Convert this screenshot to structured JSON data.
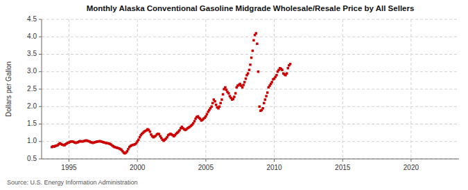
{
  "chart_data": {
    "type": "scatter",
    "title": "Monthly Alaska Conventional Gasoline Midgrade Wholesale/Resale Price by All Sellers",
    "ylabel": "Dollars per Gallon",
    "source": "Source: U.S. Energy Information Administration",
    "color": "#cc0000",
    "marker": "square",
    "grid": true,
    "xlim": [
      1993.0,
      2023.5
    ],
    "ylim": [
      0.5,
      4.5
    ],
    "xticks": [
      1995,
      2000,
      2005,
      2010,
      2015,
      2020
    ],
    "yticks": [
      0.5,
      {
        "value": 1.0,
        "label": "1.0"
      },
      1.5,
      {
        "value": 2.0,
        "label": "2.0"
      },
      2.5,
      {
        "value": 3.0,
        "label": "3.0"
      },
      3.5,
      {
        "value": 4.0,
        "label": "4.0"
      },
      4.5
    ],
    "x": [
      1993.75,
      1993.83,
      1993.92,
      1994.0,
      1994.08,
      1994.17,
      1994.25,
      1994.33,
      1994.42,
      1994.5,
      1994.58,
      1994.67,
      1994.75,
      1994.83,
      1994.92,
      1995.0,
      1995.08,
      1995.17,
      1995.25,
      1995.33,
      1995.42,
      1995.5,
      1995.58,
      1995.67,
      1995.75,
      1995.83,
      1995.92,
      1996.0,
      1996.08,
      1996.17,
      1996.25,
      1996.33,
      1996.42,
      1996.5,
      1996.58,
      1996.67,
      1996.75,
      1996.83,
      1996.92,
      1997.0,
      1997.08,
      1997.17,
      1997.25,
      1997.33,
      1997.42,
      1997.5,
      1997.58,
      1997.67,
      1997.75,
      1997.83,
      1997.92,
      1998.0,
      1998.08,
      1998.17,
      1998.25,
      1998.33,
      1998.42,
      1998.5,
      1998.58,
      1998.67,
      1998.75,
      1998.83,
      1998.92,
      1999.0,
      1999.08,
      1999.17,
      1999.25,
      1999.33,
      1999.42,
      1999.5,
      1999.58,
      1999.67,
      1999.75,
      1999.83,
      1999.92,
      2000.0,
      2000.08,
      2000.17,
      2000.25,
      2000.33,
      2000.42,
      2000.5,
      2000.58,
      2000.67,
      2000.75,
      2000.83,
      2000.92,
      2001.0,
      2001.08,
      2001.17,
      2001.25,
      2001.33,
      2001.42,
      2001.5,
      2001.58,
      2001.67,
      2001.75,
      2001.83,
      2001.92,
      2002.0,
      2002.08,
      2002.17,
      2002.25,
      2002.33,
      2002.42,
      2002.5,
      2002.58,
      2002.67,
      2002.75,
      2002.83,
      2002.92,
      2003.0,
      2003.08,
      2003.17,
      2003.25,
      2003.33,
      2003.42,
      2003.5,
      2003.58,
      2003.67,
      2003.75,
      2003.83,
      2003.92,
      2004.0,
      2004.08,
      2004.17,
      2004.25,
      2004.33,
      2004.42,
      2004.5,
      2004.58,
      2004.67,
      2004.75,
      2004.83,
      2004.92,
      2005.0,
      2005.08,
      2005.17,
      2005.25,
      2005.33,
      2005.42,
      2005.5,
      2005.58,
      2005.67,
      2005.75,
      2005.83,
      2005.92,
      2006.0,
      2006.08,
      2006.17,
      2006.25,
      2006.33,
      2006.42,
      2006.5,
      2006.58,
      2006.67,
      2006.75,
      2006.83,
      2006.92,
      2007.0,
      2007.08,
      2007.17,
      2007.25,
      2007.33,
      2007.42,
      2007.5,
      2007.58,
      2007.67,
      2007.75,
      2007.83,
      2007.92,
      2008.0,
      2008.08,
      2008.17,
      2008.25,
      2008.33,
      2008.42,
      2008.5,
      2008.58,
      2008.67,
      2008.75,
      2008.83,
      2008.92,
      2009.0,
      2009.08,
      2009.17,
      2009.25,
      2009.33,
      2009.42,
      2009.5,
      2009.58,
      2009.67,
      2009.75,
      2009.83,
      2009.92,
      2010.0,
      2010.08,
      2010.17,
      2010.25,
      2010.33,
      2010.42,
      2010.5,
      2010.58,
      2010.67,
      2010.75,
      2010.83,
      2010.92,
      2011.0,
      2011.08,
      2011.17
    ],
    "values": [
      0.84,
      0.86,
      0.85,
      0.87,
      0.88,
      0.89,
      0.92,
      0.95,
      0.93,
      0.91,
      0.9,
      0.89,
      0.92,
      0.94,
      0.96,
      0.97,
      0.99,
      1.0,
      1.0,
      0.99,
      0.97,
      0.96,
      0.97,
      0.98,
      1.0,
      1.01,
      1.0,
      1.0,
      1.01,
      1.02,
      1.03,
      1.02,
      1.01,
      1.0,
      0.98,
      0.97,
      0.96,
      0.97,
      0.98,
      0.99,
      1.0,
      1.0,
      1.01,
      1.0,
      0.99,
      0.98,
      0.97,
      0.96,
      0.95,
      0.95,
      0.94,
      0.93,
      0.91,
      0.88,
      0.86,
      0.84,
      0.83,
      0.82,
      0.81,
      0.8,
      0.78,
      0.76,
      0.72,
      0.68,
      0.66,
      0.68,
      0.72,
      0.78,
      0.84,
      0.87,
      0.89,
      0.9,
      0.91,
      0.92,
      0.95,
      1.0,
      1.05,
      1.12,
      1.18,
      1.22,
      1.25,
      1.28,
      1.3,
      1.32,
      1.35,
      1.33,
      1.28,
      1.2,
      1.15,
      1.12,
      1.14,
      1.16,
      1.2,
      1.22,
      1.21,
      1.15,
      1.1,
      1.05,
      1.02,
      1.05,
      1.08,
      1.12,
      1.18,
      1.2,
      1.22,
      1.2,
      1.18,
      1.15,
      1.18,
      1.22,
      1.25,
      1.28,
      1.32,
      1.38,
      1.42,
      1.38,
      1.35,
      1.33,
      1.35,
      1.38,
      1.4,
      1.42,
      1.45,
      1.48,
      1.52,
      1.58,
      1.65,
      1.7,
      1.72,
      1.68,
      1.65,
      1.6,
      1.62,
      1.65,
      1.68,
      1.72,
      1.78,
      1.85,
      1.9,
      1.95,
      2.0,
      2.1,
      2.2,
      2.15,
      2.05,
      1.98,
      1.95,
      2.0,
      2.1,
      2.2,
      2.35,
      2.5,
      2.55,
      2.48,
      2.42,
      2.38,
      2.3,
      2.25,
      2.2,
      2.22,
      2.28,
      2.38,
      2.55,
      2.6,
      2.62,
      2.65,
      2.6,
      2.55,
      2.62,
      2.7,
      2.8,
      2.9,
      2.95,
      3.05,
      3.2,
      3.4,
      3.6,
      3.9,
      4.05,
      4.1,
      3.8,
      3.0,
      2.0,
      1.88,
      1.9,
      1.95,
      2.1,
      2.2,
      2.3,
      2.4,
      2.55,
      2.6,
      2.65,
      2.7,
      2.78,
      2.8,
      2.85,
      2.9,
      3.0,
      3.05,
      3.1,
      3.08,
      3.05,
      2.95,
      2.92,
      2.9,
      2.95,
      3.1,
      3.18,
      3.22
    ]
  }
}
